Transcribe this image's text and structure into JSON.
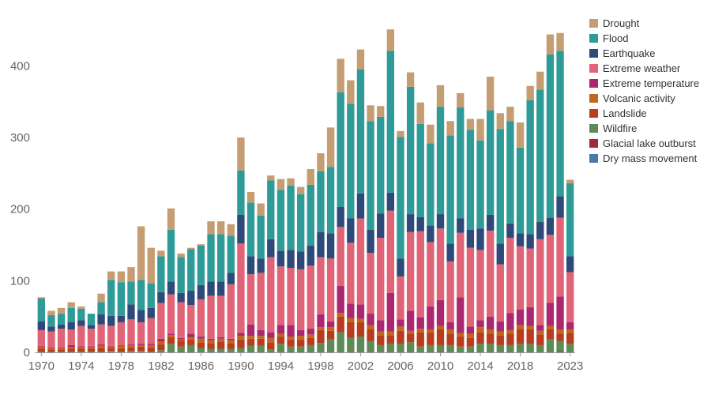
{
  "chart_data": {
    "type": "bar",
    "stacked": true,
    "title": "",
    "xlabel": "",
    "ylabel": "",
    "ylim": [
      0,
      470
    ],
    "y_ticks": [
      0,
      100,
      200,
      300,
      400
    ],
    "x_tick_labels": [
      "1970",
      "1974",
      "1978",
      "1982",
      "1986",
      "1990",
      "1994",
      "1998",
      "2002",
      "2006",
      "2010",
      "2014",
      "2018",
      "2023"
    ],
    "grid": false,
    "legend_position": "right",
    "categories": [
      "1970",
      "1971",
      "1972",
      "1973",
      "1974",
      "1975",
      "1976",
      "1977",
      "1978",
      "1979",
      "1980",
      "1981",
      "1982",
      "1983",
      "1984",
      "1985",
      "1986",
      "1987",
      "1988",
      "1989",
      "1990",
      "1991",
      "1992",
      "1993",
      "1994",
      "1995",
      "1996",
      "1997",
      "1998",
      "1999",
      "2000",
      "2001",
      "2002",
      "2003",
      "2004",
      "2005",
      "2006",
      "2007",
      "2008",
      "2009",
      "2010",
      "2011",
      "2012",
      "2013",
      "2014",
      "2015",
      "2016",
      "2017",
      "2018",
      "2019",
      "2020",
      "2021",
      "2022",
      "2023"
    ],
    "series": [
      {
        "name": "Dry mass movement",
        "color": "#4e79a7",
        "values": [
          0,
          0,
          0,
          0,
          0,
          0,
          0,
          0,
          0,
          0,
          0,
          0,
          0,
          0,
          0,
          0,
          1,
          1,
          1,
          1,
          1,
          1,
          1,
          0,
          0,
          0,
          0,
          0,
          0,
          0,
          0,
          0,
          0,
          0,
          0,
          0,
          0,
          0,
          0,
          0,
          0,
          0,
          0,
          0,
          0,
          0,
          0,
          0,
          0,
          0,
          0,
          0,
          0,
          0
        ]
      },
      {
        "name": "Glacial lake outburst",
        "color": "#9c2d37",
        "values": [
          0,
          0,
          0,
          0,
          0,
          0,
          0,
          0,
          0,
          0,
          0,
          0,
          0,
          0,
          0,
          0,
          0,
          0,
          0,
          0,
          0,
          0,
          0,
          0,
          0,
          0,
          0,
          0,
          0,
          0,
          0,
          0,
          0,
          0,
          0,
          0,
          0,
          0,
          0,
          0,
          0,
          0,
          0,
          0,
          0,
          0,
          0,
          0,
          0,
          0,
          0,
          0,
          1,
          0
        ]
      },
      {
        "name": "Wildfire",
        "color": "#5e8a55",
        "values": [
          1,
          1,
          1,
          1,
          1,
          1,
          1,
          2,
          1,
          2,
          2,
          1,
          3,
          12,
          8,
          10,
          5,
          4,
          4,
          4,
          5,
          8,
          8,
          4,
          12,
          8,
          8,
          10,
          13,
          18,
          28,
          20,
          22,
          16,
          10,
          12,
          12,
          14,
          8,
          10,
          10,
          10,
          8,
          8,
          12,
          12,
          10,
          10,
          12,
          12,
          10,
          18,
          15,
          12
        ]
      },
      {
        "name": "Landslide",
        "color": "#b83c1d",
        "values": [
          4,
          3,
          3,
          4,
          4,
          4,
          5,
          4,
          4,
          5,
          6,
          6,
          8,
          9,
          8,
          8,
          8,
          8,
          10,
          8,
          12,
          10,
          10,
          10,
          10,
          10,
          10,
          10,
          18,
          12,
          22,
          22,
          20,
          16,
          14,
          12,
          18,
          12,
          20,
          18,
          22,
          16,
          14,
          12,
          16,
          14,
          14,
          16,
          20,
          20,
          15,
          14,
          10,
          15
        ]
      },
      {
        "name": "Volcanic activity",
        "color": "#c0661a",
        "values": [
          3,
          2,
          2,
          2,
          3,
          3,
          3,
          2,
          4,
          3,
          2,
          3,
          4,
          3,
          2,
          3,
          5,
          4,
          4,
          4,
          5,
          4,
          4,
          6,
          4,
          4,
          5,
          5,
          4,
          5,
          5,
          6,
          5,
          6,
          5,
          5,
          6,
          4,
          5,
          4,
          5,
          6,
          5,
          6,
          7,
          6,
          5,
          5,
          6,
          5,
          5,
          5,
          6,
          5
        ]
      },
      {
        "name": "Extreme temperature",
        "color": "#ab2870",
        "values": [
          1,
          1,
          1,
          3,
          1,
          1,
          2,
          1,
          1,
          1,
          2,
          2,
          4,
          2,
          2,
          5,
          3,
          2,
          2,
          2,
          4,
          16,
          8,
          8,
          12,
          16,
          8,
          8,
          18,
          8,
          38,
          20,
          20,
          16,
          16,
          54,
          10,
          28,
          16,
          32,
          36,
          10,
          50,
          10,
          10,
          18,
          14,
          24,
          22,
          26,
          8,
          32,
          46,
          10
        ]
      },
      {
        "name": "Extreme weather",
        "color": "#e06377",
        "values": [
          22,
          22,
          26,
          22,
          28,
          24,
          28,
          28,
          32,
          35,
          30,
          36,
          50,
          55,
          50,
          40,
          52,
          60,
          58,
          76,
          125,
          70,
          80,
          105,
          82,
          80,
          85,
          88,
          80,
          88,
          82,
          85,
          120,
          85,
          115,
          115,
          60,
          110,
          120,
          90,
          100,
          85,
          90,
          110,
          98,
          120,
          80,
          105,
          88,
          82,
          120,
          95,
          110,
          70
        ]
      },
      {
        "name": "Earthquake",
        "color": "#2e4a7a",
        "values": [
          12,
          7,
          6,
          10,
          8,
          5,
          14,
          14,
          9,
          21,
          17,
          14,
          15,
          18,
          13,
          20,
          20,
          20,
          20,
          16,
          40,
          25,
          20,
          25,
          22,
          25,
          25,
          28,
          35,
          35,
          28,
          34,
          35,
          32,
          34,
          25,
          25,
          25,
          20,
          23,
          20,
          25,
          20,
          25,
          30,
          22,
          29,
          20,
          18,
          20,
          24,
          24,
          30,
          22
        ]
      },
      {
        "name": "Flood",
        "color": "#2f9b98",
        "values": [
          32,
          16,
          15,
          20,
          16,
          16,
          17,
          50,
          47,
          32,
          42,
          34,
          50,
          72,
          50,
          58,
          55,
          66,
          66,
          52,
          62,
          75,
          60,
          82,
          85,
          90,
          80,
          85,
          85,
          93,
          160,
          160,
          173,
          152,
          135,
          198,
          170,
          178,
          130,
          115,
          150,
          151,
          155,
          140,
          123,
          146,
          160,
          143,
          120,
          187,
          185,
          228,
          203,
          102
        ]
      },
      {
        "name": "Drought",
        "color": "#c59d72",
        "values": [
          2,
          6,
          8,
          8,
          3,
          0,
          12,
          12,
          15,
          20,
          75,
          50,
          8,
          30,
          5,
          2,
          2,
          18,
          18,
          16,
          46,
          15,
          17,
          7,
          15,
          10,
          10,
          22,
          25,
          55,
          47,
          33,
          28,
          22,
          15,
          30,
          8,
          20,
          30,
          26,
          30,
          20,
          20,
          15,
          30,
          47,
          22,
          20,
          35,
          20,
          25,
          28,
          25,
          5
        ]
      }
    ]
  }
}
